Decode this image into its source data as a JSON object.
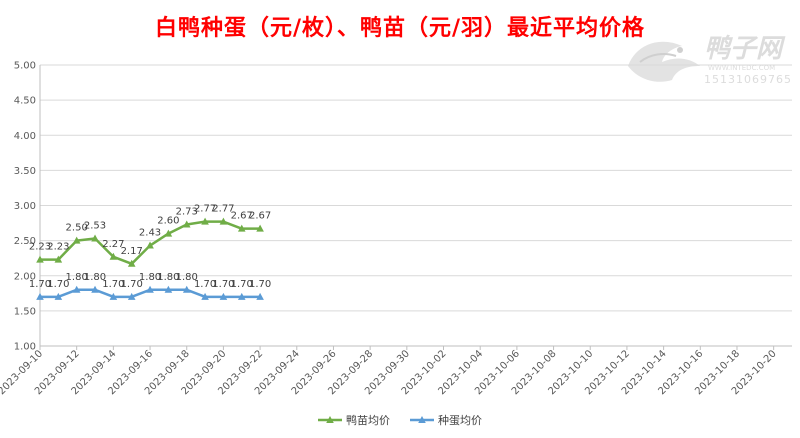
{
  "title": "白鸭种蛋（元/枚）、鸭苗（元/羽）最近平均价格",
  "watermark": {
    "name": "鸭子网",
    "site": "WWW.INTEDC.COM",
    "phone": "15131069765",
    "color": "#d9d9d9"
  },
  "chart_data": {
    "type": "line",
    "title": "白鸭种蛋（元/枚）、鸭苗（元/羽）最近平均价格",
    "ylim": [
      1.0,
      5.0
    ],
    "y_ticks": [
      "1.00",
      "1.50",
      "2.00",
      "2.50",
      "3.00",
      "3.50",
      "4.00",
      "4.50",
      "5.00"
    ],
    "x_tick_labels": [
      "2023-09-10",
      "2023-09-12",
      "2023-09-14",
      "2023-09-16",
      "2023-09-18",
      "2023-09-20",
      "2023-09-22",
      "2023-09-24",
      "2023-09-26",
      "2023-09-28",
      "2023-09-30",
      "2023-10-02",
      "2023-10-04",
      "2023-10-06",
      "2023-10-08",
      "2023-10-10",
      "2023-10-12",
      "2023-10-14",
      "2023-10-16",
      "2023-10-18",
      "2023-10-20"
    ],
    "x_range": [
      "2023-09-10",
      "2023-10-21"
    ],
    "grid": "horizontal",
    "legend_position": "bottom",
    "series": [
      {
        "name": "鸭苗均价",
        "color": "#70ad47",
        "x": [
          "2023-09-10",
          "2023-09-11",
          "2023-09-12",
          "2023-09-13",
          "2023-09-14",
          "2023-09-15",
          "2023-09-16",
          "2023-09-17",
          "2023-09-18",
          "2023-09-19",
          "2023-09-20",
          "2023-09-21",
          "2023-09-22"
        ],
        "values": [
          2.23,
          2.23,
          2.5,
          2.53,
          2.27,
          2.17,
          2.43,
          2.6,
          2.73,
          2.77,
          2.77,
          2.67,
          2.67
        ],
        "labels": [
          "2.23",
          "2.23",
          "2.50",
          "2.53",
          "2.27",
          "2.17",
          "2.43",
          "2.60",
          "2.73",
          "2.77",
          "2.77",
          "2.67",
          "2.67"
        ]
      },
      {
        "name": "种蛋均价",
        "color": "#5b9bd5",
        "x": [
          "2023-09-10",
          "2023-09-11",
          "2023-09-12",
          "2023-09-13",
          "2023-09-14",
          "2023-09-15",
          "2023-09-16",
          "2023-09-17",
          "2023-09-18",
          "2023-09-19",
          "2023-09-20",
          "2023-09-21",
          "2023-09-22"
        ],
        "values": [
          1.7,
          1.7,
          1.8,
          1.8,
          1.7,
          1.7,
          1.8,
          1.8,
          1.8,
          1.7,
          1.7,
          1.7,
          1.7
        ],
        "labels": [
          "1.70",
          "1.70",
          "1.80",
          "1.80",
          "1.70",
          "1.70",
          "1.80",
          "1.80",
          "1.80",
          "1.70",
          "1.70",
          "1.70",
          "1.70"
        ]
      }
    ]
  }
}
